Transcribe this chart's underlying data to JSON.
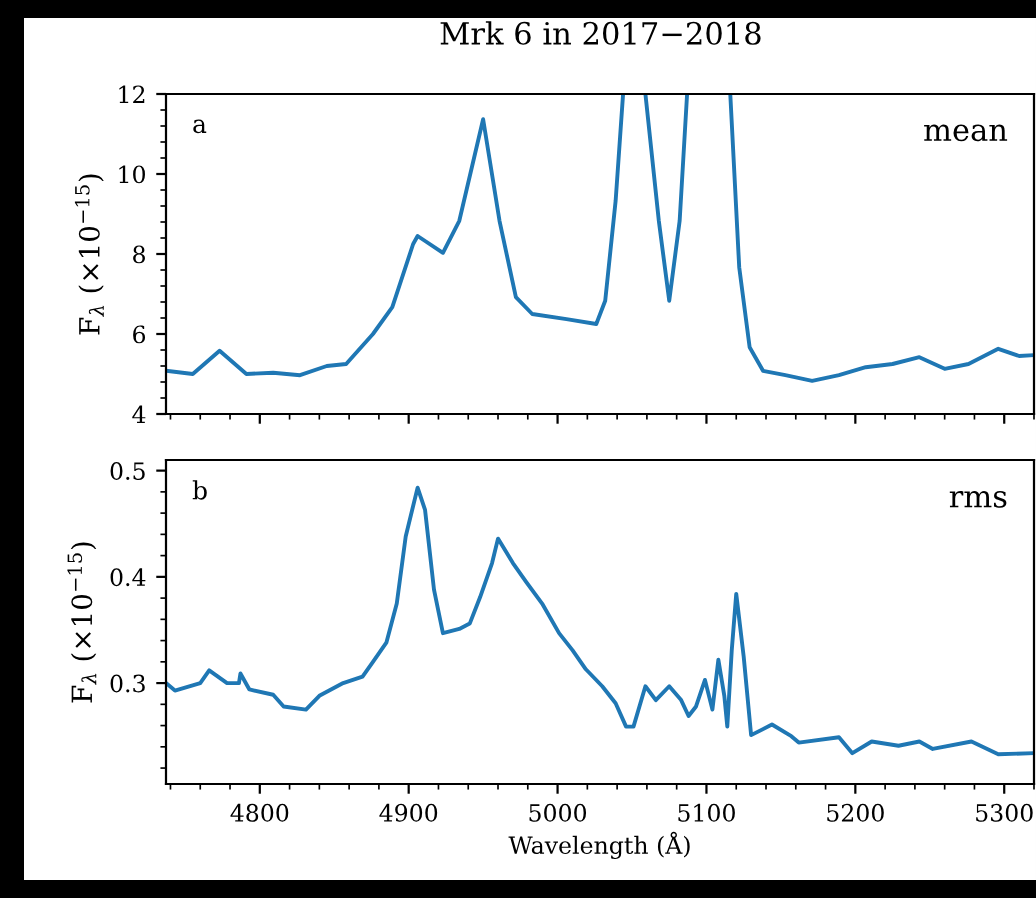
{
  "chart_data": [
    {
      "type": "line",
      "title": "Mrk 6 in 2017−2018",
      "ylabel": "F$_{λ}$ (×10$^{−15}$)",
      "annotations": [
        "a",
        "mean"
      ],
      "tick_labels": "y",
      "xlim": [
        4737,
        5320
      ],
      "xticks": [
        4800,
        4900,
        5000,
        5100,
        5200,
        5300
      ],
      "ylim": [
        4,
        12
      ],
      "yticks": [
        4,
        6,
        8,
        10,
        12
      ],
      "grid": false,
      "legend": false,
      "series": [
        {
          "color": "#1f77b4",
          "x": [
            4737,
            4755,
            4773,
            4791,
            4809,
            4827,
            4845,
            4858,
            4876,
            4889,
            4903,
            4906,
            4923,
            4934,
            4950,
            4961,
            4972,
            4983,
            5006,
            5026,
            5032,
            5039,
            5044,
            5052,
            5059,
            5068,
            5075,
            5082,
            5087,
            5100,
            5116,
            5122,
            5129,
            5138,
            5153,
            5171,
            5189,
            5207,
            5225,
            5243,
            5260,
            5276,
            5296,
            5310,
            5319
          ],
          "values": [
            5.08,
            5.0,
            5.58,
            5.0,
            5.03,
            4.97,
            5.2,
            5.25,
            6.0,
            6.67,
            8.25,
            8.45,
            8.03,
            8.83,
            11.37,
            8.83,
            6.92,
            6.5,
            6.37,
            6.25,
            6.83,
            9.33,
            12,
            null,
            12,
            8.83,
            6.83,
            8.83,
            12,
            null,
            12,
            7.67,
            5.67,
            5.08,
            4.97,
            4.83,
            4.97,
            5.17,
            5.25,
            5.42,
            5.13,
            5.25,
            5.63,
            5.45,
            5.47
          ]
        }
      ]
    },
    {
      "type": "line",
      "xlabel": "Wavelength (Å)",
      "ylabel": "F$_{λ}$ (×10$^{−15}$)",
      "annotations": [
        "b",
        "rms"
      ],
      "xlim": [
        4737,
        5320
      ],
      "xticks": [
        4800,
        4900,
        5000,
        5100,
        5200,
        5300
      ],
      "ylim": [
        0.205,
        0.51
      ],
      "yticks": [
        0.3,
        0.4,
        0.5
      ],
      "grid": false,
      "legend": false,
      "series": [
        {
          "color": "#1f77b4",
          "x": [
            4737,
            4743,
            4760,
            4766,
            4778,
            4786,
            4787,
            4793,
            4809,
            4816,
            4831,
            4840,
            4856,
            4869,
            4876,
            4885,
            4892,
            4898,
            4906,
            4911,
            4917,
            4923,
            4934,
            4941,
            4948,
            4956,
            4960,
            4970,
            4979,
            4990,
            5001,
            5010,
            5019,
            5030,
            5039,
            5046,
            5051,
            5059,
            5066,
            5075,
            5083,
            5088,
            5093,
            5099,
            5104,
            5108,
            5112,
            5114,
            5117,
            5120,
            5125,
            5130,
            5144,
            5157,
            5162,
            5189,
            5198,
            5211,
            5229,
            5243,
            5252,
            5278,
            5296,
            5319
          ],
          "values": [
            0.3,
            0.293,
            0.3,
            0.312,
            0.3,
            0.3,
            0.309,
            0.294,
            0.289,
            0.278,
            0.275,
            0.288,
            0.3,
            0.306,
            0.32,
            0.338,
            0.375,
            0.438,
            0.484,
            0.463,
            0.388,
            0.347,
            0.351,
            0.356,
            0.381,
            0.413,
            0.436,
            0.413,
            0.395,
            0.374,
            0.347,
            0.331,
            0.313,
            0.297,
            0.281,
            0.259,
            0.259,
            0.297,
            0.284,
            0.297,
            0.284,
            0.269,
            0.278,
            0.303,
            0.275,
            0.322,
            0.288,
            0.259,
            0.331,
            0.384,
            0.325,
            0.251,
            0.261,
            0.25,
            0.244,
            0.249,
            0.234,
            0.245,
            0.241,
            0.245,
            0.238,
            0.245,
            0.233,
            0.234
          ]
        }
      ]
    }
  ]
}
